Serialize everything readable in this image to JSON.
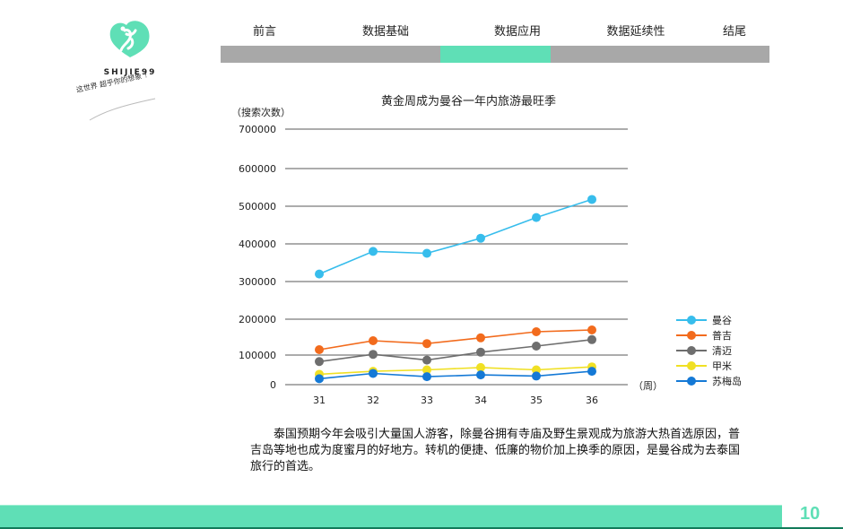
{
  "brand": {
    "name": "SHIJIE99",
    "slogan": "这世界 超乎你的想象 ！",
    "logo_icon": "heart-leaf-logo-icon",
    "color": "#5fdfb6"
  },
  "nav": {
    "items": [
      {
        "label": "前言",
        "active": false
      },
      {
        "label": "数据基础",
        "active": false
      },
      {
        "label": "数据应用",
        "active": true
      },
      {
        "label": "数据延续性",
        "active": false
      },
      {
        "label": "结尾",
        "active": false
      }
    ],
    "bar_color": "#a8a8a8",
    "active_color": "#5fdfb6"
  },
  "chart": {
    "title": "黄金周成为曼谷一年内旅游最旺季",
    "y_unit": "（搜索次数）",
    "x_unit": "（周）",
    "y_ticks": [
      "700000",
      "600000",
      "500000",
      "400000",
      "300000",
      "200000",
      "100000",
      "0"
    ],
    "x_ticks": [
      "31",
      "32",
      "33",
      "34",
      "35",
      "36"
    ],
    "legend": [
      {
        "label": "曼谷",
        "color": "#37bdec"
      },
      {
        "label": "普吉",
        "color": "#f26b1d"
      },
      {
        "label": "清迈",
        "color": "#6e6e6e"
      },
      {
        "label": "甲米",
        "color": "#f0e024"
      },
      {
        "label": "苏梅岛",
        "color": "#1479d6"
      }
    ]
  },
  "chart_data": {
    "type": "line",
    "title": "黄金周成为曼谷一年内旅游最旺季",
    "xlabel": "（周）",
    "ylabel": "（搜索次数）",
    "categories": [
      "31",
      "32",
      "33",
      "34",
      "35",
      "36"
    ],
    "ylim": [
      0,
      700000
    ],
    "y_ticks": [
      0,
      100000,
      200000,
      300000,
      400000,
      500000,
      600000,
      700000
    ],
    "grid": true,
    "legend_position": "right",
    "series": [
      {
        "name": "曼谷",
        "color": "#37bdec",
        "values": [
          320000,
          380000,
          375000,
          415000,
          470000,
          518000
        ]
      },
      {
        "name": "普吉",
        "color": "#f26b1d",
        "values": [
          115000,
          140000,
          132000,
          148000,
          165000,
          170000
        ]
      },
      {
        "name": "清迈",
        "color": "#6e6e6e",
        "values": [
          78000,
          102000,
          83000,
          108000,
          125000,
          143000
        ]
      },
      {
        "name": "甲米",
        "color": "#f0e024",
        "values": [
          35000,
          45000,
          50000,
          58000,
          50000,
          60000
        ]
      },
      {
        "name": "苏梅岛",
        "color": "#1479d6",
        "values": [
          20000,
          38000,
          27000,
          33000,
          29000,
          45000
        ]
      }
    ]
  },
  "paragraph": "泰国预期今年会吸引大量国人游客，除曼谷拥有寺庙及野生景观成为旅游大热首选原因，普吉岛等地也成为度蜜月的好地方。转机的便捷、低廉的物价加上换季的原因，是曼谷成为去泰国旅行的首选。",
  "footer": {
    "page_number": "10",
    "color": "#5fdfb6"
  }
}
